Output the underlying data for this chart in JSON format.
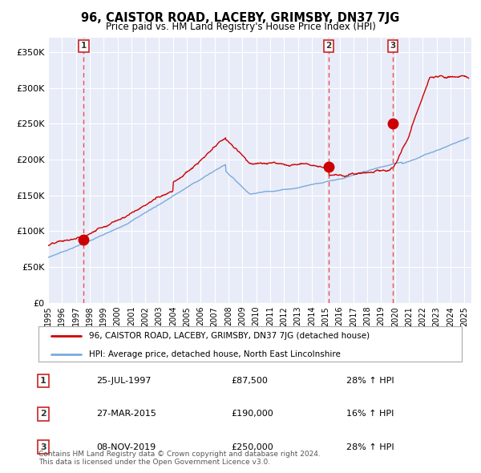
{
  "title": "96, CAISTOR ROAD, LACEBY, GRIMSBY, DN37 7JG",
  "subtitle": "Price paid vs. HM Land Registry's House Price Index (HPI)",
  "ylim": [
    0,
    370000
  ],
  "yticks": [
    0,
    50000,
    100000,
    150000,
    200000,
    250000,
    300000,
    350000
  ],
  "ytick_labels": [
    "£0",
    "£50K",
    "£100K",
    "£150K",
    "£200K",
    "£250K",
    "£300K",
    "£350K"
  ],
  "background_color": "#ffffff",
  "plot_bg_color": "#e8ecf8",
  "grid_color": "#ffffff",
  "purchases": [
    {
      "date_num": 1997.56,
      "price": 87500,
      "label": "1",
      "date_str": "25-JUL-1997",
      "price_str": "£87,500",
      "hpi_pct": "28% ↑ HPI"
    },
    {
      "date_num": 2015.23,
      "price": 190000,
      "label": "2",
      "date_str": "27-MAR-2015",
      "price_str": "£190,000",
      "hpi_pct": "16% ↑ HPI"
    },
    {
      "date_num": 2019.85,
      "price": 250000,
      "label": "3",
      "date_str": "08-NOV-2019",
      "price_str": "£250,000",
      "hpi_pct": "28% ↑ HPI"
    }
  ],
  "red_line_color": "#cc0000",
  "blue_line_color": "#7aaadd",
  "dashed_line_color": "#ee3333",
  "marker_color": "#cc0000",
  "legend_entries": [
    "96, CAISTOR ROAD, LACEBY, GRIMSBY, DN37 7JG (detached house)",
    "HPI: Average price, detached house, North East Lincolnshire"
  ],
  "footer_text": "Contains HM Land Registry data © Crown copyright and database right 2024.\nThis data is licensed under the Open Government Licence v3.0.",
  "xmin": 1995.0,
  "xmax": 2025.5,
  "xticks": [
    1995,
    1996,
    1997,
    1998,
    1999,
    2000,
    2001,
    2002,
    2003,
    2004,
    2005,
    2006,
    2007,
    2008,
    2009,
    2010,
    2011,
    2012,
    2013,
    2014,
    2015,
    2016,
    2017,
    2018,
    2019,
    2020,
    2021,
    2022,
    2023,
    2024,
    2025
  ]
}
